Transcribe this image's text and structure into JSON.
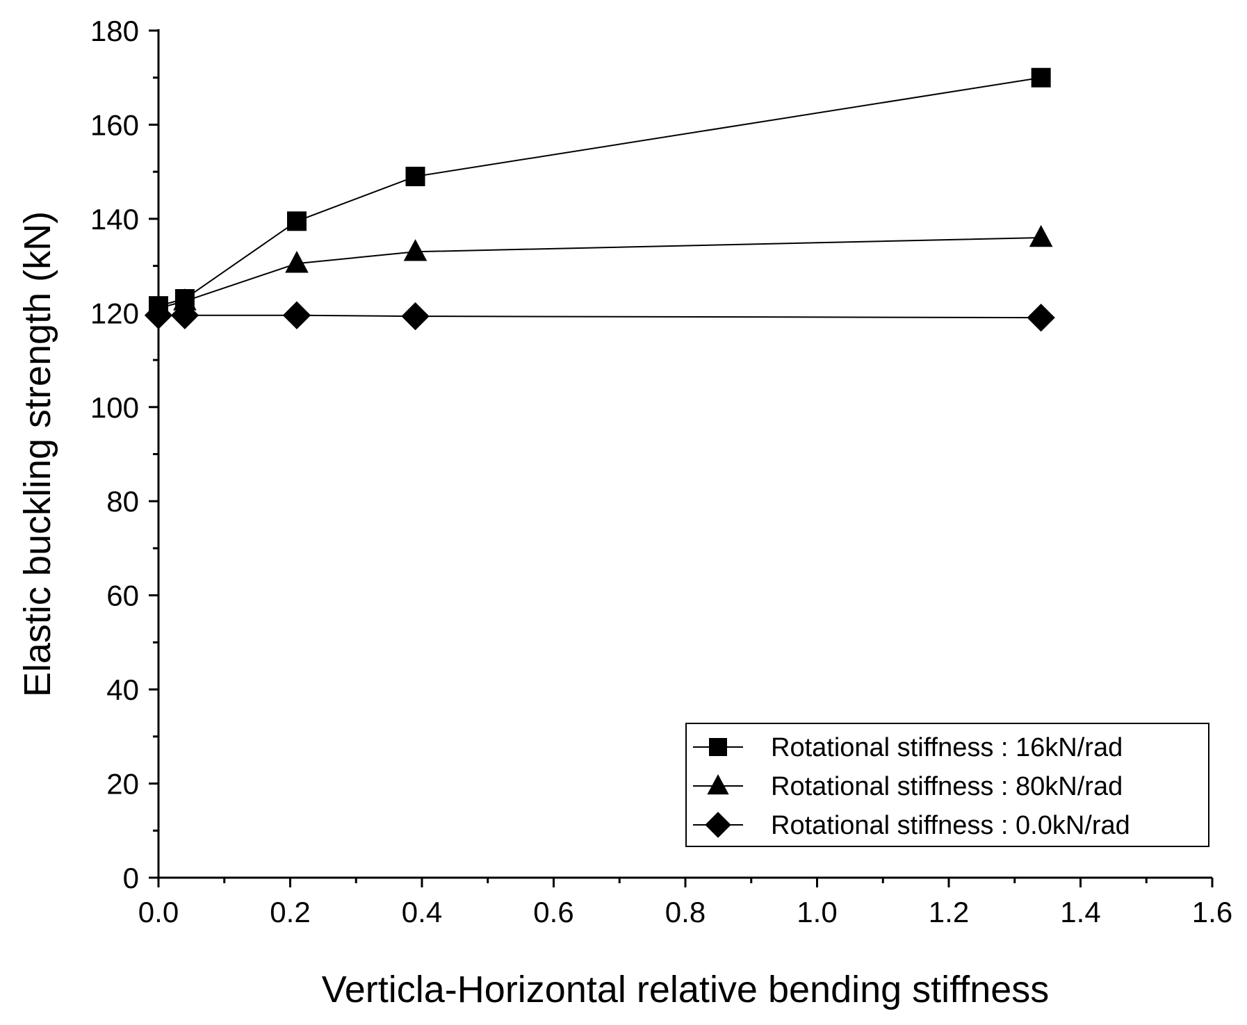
{
  "chart_data": {
    "type": "line",
    "title": "",
    "xlabel": "Verticla-Horizontal relative bending stiffness",
    "ylabel": "Elastic buckling strength (kN)",
    "xlim": [
      0.0,
      1.6
    ],
    "ylim": [
      0,
      180
    ],
    "xticks": [
      0.0,
      0.2,
      0.4,
      0.6,
      0.8,
      1.0,
      1.2,
      1.4,
      1.6
    ],
    "xtick_labels": [
      "0.0",
      "0.2",
      "0.4",
      "0.6",
      "0.8",
      "1.0",
      "1.2",
      "1.4",
      "1.6"
    ],
    "yticks": [
      0,
      20,
      40,
      60,
      80,
      100,
      120,
      140,
      160,
      180
    ],
    "ytick_labels": [
      "0",
      "20",
      "40",
      "60",
      "80",
      "100",
      "120",
      "140",
      "160",
      "180"
    ],
    "grid": false,
    "legend_position": "bottom-right",
    "series": [
      {
        "name": "Rotational stiffness : 16kN/rad",
        "marker": "square",
        "x": [
          0.0,
          0.04,
          0.21,
          0.39,
          1.34
        ],
        "y": [
          121.5,
          123.0,
          139.5,
          149.0,
          170.0
        ]
      },
      {
        "name": "Rotational stiffness : 80kN/rad",
        "marker": "triangle",
        "x": [
          0.0,
          0.04,
          0.21,
          0.39,
          1.34
        ],
        "y": [
          121.0,
          122.5,
          130.5,
          133.0,
          136.0
        ]
      },
      {
        "name": "Rotational stiffness : 0.0kN/rad",
        "marker": "diamond",
        "x": [
          0.0,
          0.04,
          0.21,
          0.39,
          1.34
        ],
        "y": [
          119.5,
          119.5,
          119.5,
          119.3,
          119.0
        ]
      }
    ]
  }
}
